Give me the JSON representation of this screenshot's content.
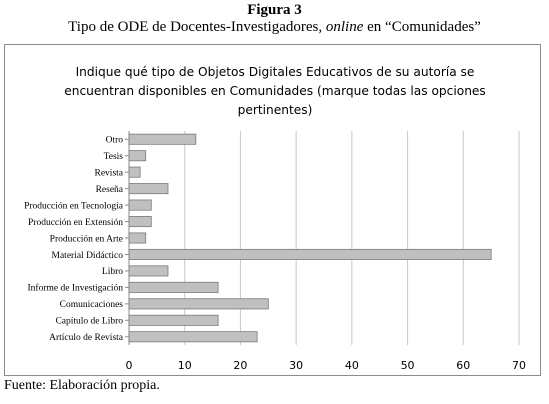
{
  "figure": {
    "number": "Figura 3",
    "title_prefix": "Tipo de ODE de Docentes-Investigadores, ",
    "title_italic": "online",
    "title_suffix": " en “Comunidades”"
  },
  "source": "Fuente: Elaboración propia.",
  "chart_data": {
    "type": "bar",
    "orientation": "horizontal",
    "title_lines": [
      "Indique qué tipo de Objetos Digitales Educativos de su autoría se",
      "encuentran disponibles en Comunidades (marque todas las opciones",
      "pertinentes)"
    ],
    "categories": [
      "Otro",
      "Tesis",
      "Revista",
      "Reseña",
      "Producción en Tecnología",
      "Producción en Extensión",
      "Producción en Arte",
      "Material Didáctico",
      "Libro",
      "Informe de Investigación",
      "Comunicaciones",
      "Capítulo de Libro",
      "Artículo de Revista"
    ],
    "values": [
      12,
      3,
      2,
      7,
      4,
      4,
      3,
      65,
      7,
      16,
      25,
      16,
      23
    ],
    "xlim": [
      0,
      70
    ],
    "xticks": [
      0,
      10,
      20,
      30,
      40,
      50,
      60,
      70
    ],
    "grid": "vertical",
    "legend": "none",
    "bar_color": "#c0c0c0",
    "bar_edge_color": "#7a7a7a",
    "grid_color": "#c8c8c8"
  }
}
